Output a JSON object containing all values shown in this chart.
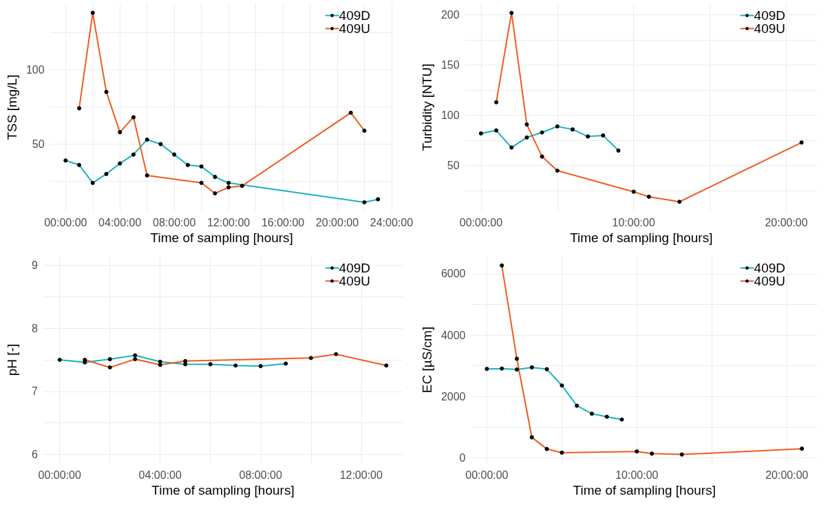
{
  "chart_data": [
    {
      "type": "line",
      "xlabel": "Time of sampling [hours]",
      "ylabel": "TSS [mg/L]",
      "xlim": [
        -1.15,
        24.15
      ],
      "ylim": [
        5,
        144.3
      ],
      "xticks": [
        {
          "value": 0,
          "label": "00:00:00"
        },
        {
          "value": 2,
          "label": null
        },
        {
          "value": 4,
          "label": "04:00:00"
        },
        {
          "value": 6,
          "label": null
        },
        {
          "value": 8,
          "label": "08:00:00"
        },
        {
          "value": 10,
          "label": null
        },
        {
          "value": 12,
          "label": "12:00:00"
        },
        {
          "value": 14,
          "label": null
        },
        {
          "value": 16,
          "label": "16:00:00"
        },
        {
          "value": 18,
          "label": null
        },
        {
          "value": 20,
          "label": "20:00:00"
        },
        {
          "value": 22,
          "label": null
        },
        {
          "value": 24,
          "label": "24:00:00"
        }
      ],
      "yticks": [
        {
          "value": 25,
          "label": null
        },
        50,
        {
          "value": 75,
          "label": null
        },
        100,
        {
          "value": 125,
          "label": null
        }
      ],
      "grid": true,
      "legend": "top right",
      "marker": "circle",
      "line_style": "solid",
      "series": [
        {
          "name": "409D",
          "color": "#19b2bf",
          "x": [
            0,
            1,
            2,
            3,
            4,
            5,
            6,
            7,
            8,
            9,
            10,
            11,
            12,
            22,
            23
          ],
          "values": [
            39,
            36,
            24,
            30,
            37,
            43,
            53,
            50,
            43,
            36,
            35,
            28,
            24,
            11,
            13
          ]
        },
        {
          "name": "409U",
          "color": "#f05a1e",
          "x": [
            1,
            2,
            3,
            4,
            5,
            6,
            10,
            11,
            12,
            13,
            21,
            22
          ],
          "values": [
            74,
            138,
            85,
            58,
            68,
            29,
            24,
            17,
            21,
            22,
            71,
            59
          ]
        }
      ]
    },
    {
      "type": "line",
      "xlabel": "Time of sampling [hours]",
      "ylabel": "Turbidity [NTU]",
      "xlim": [
        -1.05,
        22.05
      ],
      "ylim": [
        4.6,
        211.4
      ],
      "xticks": [
        {
          "value": 0,
          "label": "00:00:00"
        },
        {
          "value": 5,
          "label": null
        },
        {
          "value": 10,
          "label": "10:00:00"
        },
        {
          "value": 15,
          "label": null
        },
        {
          "value": 20,
          "label": "20:00:00"
        }
      ],
      "yticks": [
        {
          "value": 25,
          "label": null
        },
        50,
        {
          "value": 75,
          "label": null
        },
        100,
        {
          "value": 125,
          "label": null
        },
        150,
        {
          "value": 175,
          "label": null
        },
        200
      ],
      "grid": true,
      "legend": "top right",
      "marker": "circle",
      "line_style": "solid",
      "series": [
        {
          "name": "409D",
          "color": "#19b2bf",
          "x": [
            0,
            1,
            2,
            3,
            4,
            5,
            6,
            7,
            8,
            9
          ],
          "values": [
            82,
            85,
            68,
            78,
            83,
            89,
            86,
            79,
            80,
            65
          ]
        },
        {
          "name": "409U",
          "color": "#f05a1e",
          "x": [
            1,
            2,
            3,
            4,
            5,
            10,
            11,
            13,
            21
          ],
          "values": [
            113,
            202,
            91,
            59,
            45,
            24,
            19,
            14,
            73
          ]
        }
      ]
    },
    {
      "type": "line",
      "xlabel": "Time of sampling [hours]",
      "ylabel": "pH [-]",
      "xlim": [
        -0.65,
        13.65
      ],
      "ylim": [
        5.85,
        9.15
      ],
      "xticks": [
        {
          "value": 0,
          "label": "00:00:00"
        },
        {
          "value": 2,
          "label": null
        },
        {
          "value": 4,
          "label": "04:00:00"
        },
        {
          "value": 6,
          "label": null
        },
        {
          "value": 8,
          "label": "08:00:00"
        },
        {
          "value": 10,
          "label": null
        },
        {
          "value": 12,
          "label": "12:00:00"
        }
      ],
      "yticks": [
        6,
        {
          "value": 6.5,
          "label": null
        },
        7,
        {
          "value": 7.5,
          "label": null
        },
        8,
        {
          "value": 8.5,
          "label": null
        },
        9
      ],
      "grid": true,
      "legend": "top right",
      "marker": "circle",
      "line_style": "solid",
      "series": [
        {
          "name": "409D",
          "color": "#19b2bf",
          "x": [
            0,
            1,
            2,
            3,
            4,
            5,
            6,
            7,
            8,
            9
          ],
          "values": [
            7.5,
            7.46,
            7.51,
            7.57,
            7.47,
            7.43,
            7.43,
            7.41,
            7.4,
            7.44
          ]
        },
        {
          "name": "409U",
          "color": "#f05a1e",
          "x": [
            1,
            2,
            3,
            4,
            5,
            10,
            11,
            13
          ],
          "values": [
            7.5,
            7.38,
            7.51,
            7.42,
            7.48,
            7.53,
            7.59,
            7.41
          ]
        }
      ]
    },
    {
      "type": "line",
      "xlabel": "Time of sampling [hours]",
      "ylabel": "EC [µS/cm]",
      "xlim": [
        -1.05,
        22.05
      ],
      "ylim": [
        -190,
        6580
      ],
      "xticks": [
        {
          "value": 0,
          "label": "00:00:00"
        },
        {
          "value": 5,
          "label": null
        },
        {
          "value": 10,
          "label": "10:00:00"
        },
        {
          "value": 15,
          "label": null
        },
        {
          "value": 20,
          "label": "20:00:00"
        }
      ],
      "yticks": [
        0,
        {
          "value": 1000,
          "label": null
        },
        2000,
        {
          "value": 3000,
          "label": null
        },
        4000,
        {
          "value": 5000,
          "label": null
        },
        6000
      ],
      "grid": true,
      "legend": "top right",
      "marker": "circle",
      "line_style": "solid",
      "series": [
        {
          "name": "409D",
          "color": "#19b2bf",
          "x": [
            0,
            1,
            2,
            3,
            4,
            5,
            6,
            7,
            8,
            9
          ],
          "values": [
            2900,
            2910,
            2880,
            2950,
            2890,
            2360,
            1700,
            1440,
            1340,
            1250
          ]
        },
        {
          "name": "409U",
          "color": "#f05a1e",
          "x": [
            1,
            2,
            3,
            4,
            5,
            10,
            11,
            13,
            21
          ],
          "values": [
            6270,
            3230,
            670,
            290,
            170,
            210,
            140,
            110,
            300
          ]
        }
      ]
    }
  ]
}
